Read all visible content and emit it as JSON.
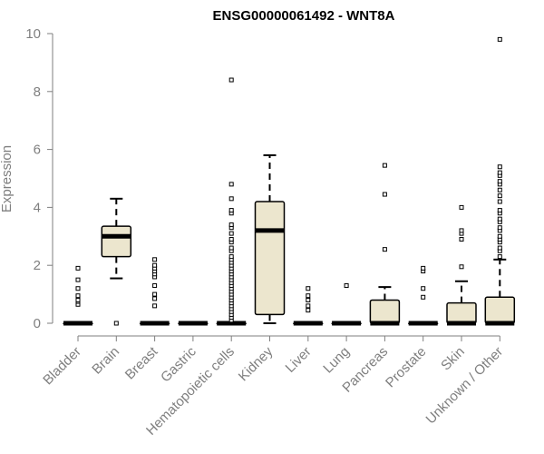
{
  "chart_data": {
    "type": "boxplot",
    "title": "ENSG00000061492 - WNT8A",
    "xlabel": "",
    "ylabel": "Expression",
    "ylim": [
      0,
      10
    ],
    "yticks": [
      0,
      2,
      4,
      6,
      8,
      10
    ],
    "box_fill": "#ECE6CE",
    "line_color": "#000000",
    "axis_color": "#7f7f7f",
    "categories": [
      {
        "label": "Bladder",
        "q1": 0,
        "median": 0,
        "q3": 0,
        "whisker_low": 0,
        "whisker_high": 0,
        "outliers": [
          0.65,
          0.75,
          0.8,
          0.95,
          1.2,
          1.5,
          1.9
        ]
      },
      {
        "label": "Brain",
        "q1": 2.3,
        "median": 3.0,
        "q3": 3.35,
        "whisker_low": 1.55,
        "whisker_high": 4.3,
        "outliers": [
          0.0
        ]
      },
      {
        "label": "Breast",
        "q1": 0,
        "median": 0,
        "q3": 0,
        "whisker_low": 0,
        "whisker_high": 0,
        "outliers": [
          0.6,
          0.85,
          1.0,
          1.3,
          1.6,
          1.7,
          1.8,
          1.9,
          2.0,
          2.2
        ]
      },
      {
        "label": "Gastric",
        "q1": 0,
        "median": 0,
        "q3": 0,
        "whisker_low": 0,
        "whisker_high": 0,
        "outliers": []
      },
      {
        "label": "Hematopoietic cells",
        "q1": 0,
        "median": 0,
        "q3": 0,
        "whisker_low": 0,
        "whisker_high": 0,
        "outliers": [
          0.1,
          0.2,
          0.3,
          0.4,
          0.5,
          0.6,
          0.7,
          0.8,
          0.9,
          1.0,
          1.1,
          1.2,
          1.3,
          1.4,
          1.5,
          1.6,
          1.7,
          1.8,
          1.9,
          2.0,
          2.1,
          2.2,
          2.3,
          2.5,
          2.6,
          2.8,
          2.9,
          3.1,
          3.3,
          3.4,
          3.8,
          3.9,
          4.3,
          4.8,
          8.4
        ]
      },
      {
        "label": "Kidney",
        "q1": 0.3,
        "median": 3.2,
        "q3": 4.2,
        "whisker_low": 0,
        "whisker_high": 5.8,
        "outliers": []
      },
      {
        "label": "Liver",
        "q1": 0,
        "median": 0,
        "q3": 0,
        "whisker_low": 0,
        "whisker_high": 0,
        "outliers": [
          0.45,
          0.6,
          0.8,
          0.95,
          1.2
        ]
      },
      {
        "label": "Lung",
        "q1": 0,
        "median": 0,
        "q3": 0,
        "whisker_low": 0,
        "whisker_high": 0,
        "outliers": [
          1.3
        ]
      },
      {
        "label": "Pancreas",
        "q1": 0,
        "median": 0,
        "q3": 0.8,
        "whisker_low": 0,
        "whisker_high": 1.25,
        "outliers": [
          2.55,
          4.45,
          5.45
        ]
      },
      {
        "label": "Prostate",
        "q1": 0,
        "median": 0,
        "q3": 0,
        "whisker_low": 0,
        "whisker_high": 0,
        "outliers": [
          0.9,
          1.2,
          1.8,
          1.9
        ]
      },
      {
        "label": "Skin",
        "q1": 0,
        "median": 0,
        "q3": 0.7,
        "whisker_low": 0,
        "whisker_high": 1.45,
        "outliers": [
          1.95,
          2.9,
          3.1,
          3.2,
          4.0
        ]
      },
      {
        "label": "Unknown / Other",
        "q1": 0,
        "median": 0,
        "q3": 0.9,
        "whisker_low": 0,
        "whisker_high": 2.2,
        "outliers": [
          2.3,
          2.5,
          2.6,
          2.8,
          2.9,
          3.0,
          3.2,
          3.3,
          3.5,
          3.6,
          3.8,
          3.9,
          4.2,
          4.4,
          4.6,
          4.8,
          4.9,
          5.1,
          5.2,
          5.4,
          9.8
        ]
      }
    ]
  }
}
